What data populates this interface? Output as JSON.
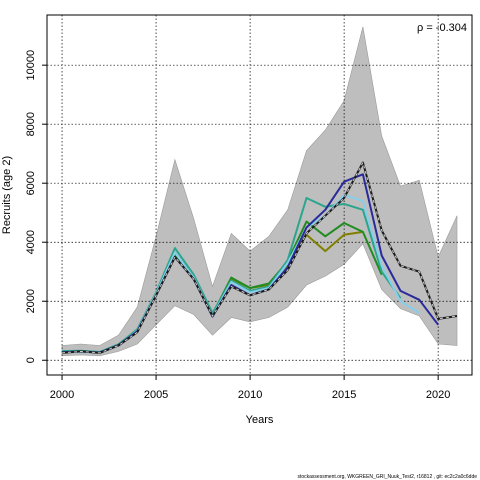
{
  "chart_data": {
    "type": "line",
    "xlabel": "Years",
    "ylabel": "Recruits (age 2)",
    "annotation": "ρ = -0.304",
    "xlim": [
      1999.2,
      2021.8
    ],
    "ylim": [
      -500,
      11700
    ],
    "x_ticks": [
      2000,
      2005,
      2010,
      2015,
      2020
    ],
    "y_ticks": [
      0,
      2000,
      4000,
      6000,
      8000,
      10000
    ],
    "grid": true,
    "confidence_band": {
      "x": [
        2000,
        2001,
        2002,
        2003,
        2004,
        2005,
        2006,
        2007,
        2008,
        2009,
        2010,
        2011,
        2012,
        2013,
        2014,
        2015,
        2016,
        2017,
        2018,
        2019,
        2020,
        2021
      ],
      "upper": [
        500,
        550,
        500,
        850,
        1800,
        4200,
        6800,
        4800,
        2500,
        4300,
        3700,
        4200,
        5100,
        7100,
        7800,
        8800,
        11300,
        7600,
        5900,
        6100,
        3500,
        4900
      ],
      "lower": [
        150,
        180,
        150,
        300,
        550,
        1200,
        1850,
        1550,
        850,
        1450,
        1300,
        1450,
        1800,
        2550,
        2850,
        3250,
        3950,
        2400,
        1750,
        1500,
        550,
        500
      ]
    },
    "series": [
      {
        "color": "#1a1a1a",
        "dashed": true,
        "x": [
          2000,
          2001,
          2002,
          2003,
          2004,
          2005,
          2006,
          2007,
          2008,
          2009,
          2010,
          2011,
          2012,
          2013,
          2014,
          2015,
          2016,
          2017,
          2018,
          2019,
          2020,
          2021
        ],
        "values": [
          250,
          300,
          250,
          500,
          950,
          2200,
          3500,
          2750,
          1500,
          2500,
          2200,
          2400,
          3050,
          4300,
          4900,
          5500,
          6700,
          4400,
          3200,
          3000,
          1400,
          1500
        ]
      },
      {
        "color": "#808000",
        "x": [
          2000,
          2001,
          2002,
          2003,
          2004,
          2005,
          2006,
          2007,
          2008,
          2009,
          2010,
          2011,
          2012,
          2013,
          2014,
          2015,
          2016
        ],
        "values": [
          280,
          300,
          260,
          520,
          1000,
          2200,
          3550,
          2800,
          1500,
          2750,
          2450,
          2550,
          3250,
          4250,
          3700,
          4250,
          4350
        ]
      },
      {
        "color": "#228b22",
        "x": [
          2000,
          2001,
          2002,
          2003,
          2004,
          2005,
          2006,
          2007,
          2008,
          2009,
          2010,
          2011,
          2012,
          2013,
          2014,
          2015,
          2016,
          2017
        ],
        "values": [
          300,
          310,
          270,
          520,
          1000,
          2250,
          3600,
          2850,
          1550,
          2800,
          2450,
          2600,
          3350,
          4700,
          4200,
          4650,
          4350,
          2900
        ]
      },
      {
        "color": "#2ca58d",
        "x": [
          2000,
          2001,
          2002,
          2003,
          2004,
          2005,
          2006,
          2007,
          2008,
          2009,
          2010,
          2011,
          2012,
          2013,
          2014,
          2015,
          2016,
          2017,
          2018
        ],
        "values": [
          310,
          320,
          280,
          540,
          1050,
          2300,
          3800,
          2900,
          1600,
          2700,
          2350,
          2500,
          3400,
          5500,
          5200,
          5300,
          5100,
          3000,
          2100
        ]
      },
      {
        "color": "#87ceeb",
        "x": [
          2000,
          2001,
          2002,
          2003,
          2004,
          2005,
          2006,
          2007,
          2008,
          2009,
          2010,
          2011,
          2012,
          2013,
          2014,
          2015,
          2016,
          2017,
          2018,
          2019
        ],
        "values": [
          260,
          290,
          250,
          500,
          1000,
          2250,
          3650,
          2800,
          1500,
          2650,
          2300,
          2450,
          3300,
          4500,
          4900,
          5600,
          5400,
          3200,
          2000,
          1600
        ]
      },
      {
        "color": "#2a2a9a",
        "x": [
          2000,
          2001,
          2002,
          2003,
          2004,
          2005,
          2006,
          2007,
          2008,
          2009,
          2010,
          2011,
          2012,
          2013,
          2014,
          2015,
          2016,
          2017,
          2018,
          2019,
          2020
        ],
        "values": [
          270,
          300,
          260,
          510,
          980,
          2200,
          3500,
          2750,
          1480,
          2550,
          2200,
          2400,
          3150,
          4500,
          5100,
          6050,
          6300,
          3550,
          2350,
          2050,
          1200
        ]
      }
    ]
  },
  "footer": "stockassessment.org, WKGREEN_GRI_Nuuk_Test2, r16812 , git: ec2c2a0c6dde"
}
